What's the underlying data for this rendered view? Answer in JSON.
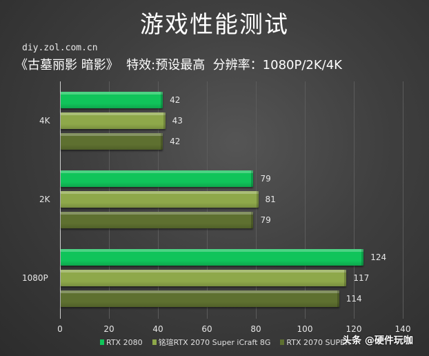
{
  "header": {
    "title": "游戏性能测试",
    "site": "diy.zol.com.cn",
    "subtitle": "《古墓丽影 暗影》  特效:预设最高  分辨率：1080P/2K/4K"
  },
  "watermark": "头条 @硬件玩咖",
  "colors": {
    "series1": "#10c45a",
    "series2": "#8ea84a",
    "series3": "#5e7030",
    "background": "#3a3a3a"
  },
  "chart_data": {
    "type": "bar",
    "orientation": "horizontal",
    "title": "游戏性能测试",
    "subtitle": "《古墓丽影 暗影》 特效:预设最高 分辨率：1080P/2K/4K",
    "categories": [
      "4K",
      "2K",
      "1080P"
    ],
    "series": [
      {
        "name": "RTX 2080",
        "values": [
          42,
          79,
          124
        ]
      },
      {
        "name": "铭瑄RTX 2070 Super iCraft 8G",
        "values": [
          43,
          81,
          117
        ]
      },
      {
        "name": "RTX 2070 SUPER",
        "values": [
          42,
          79,
          114
        ]
      }
    ],
    "xticks": [
      "0",
      "20",
      "40",
      "60",
      "80",
      "100",
      "120",
      "140"
    ],
    "xlim": [
      0,
      140
    ],
    "xlabel": "",
    "ylabel": "",
    "grid": true,
    "legend_position": "bottom",
    "data_labels": true
  }
}
